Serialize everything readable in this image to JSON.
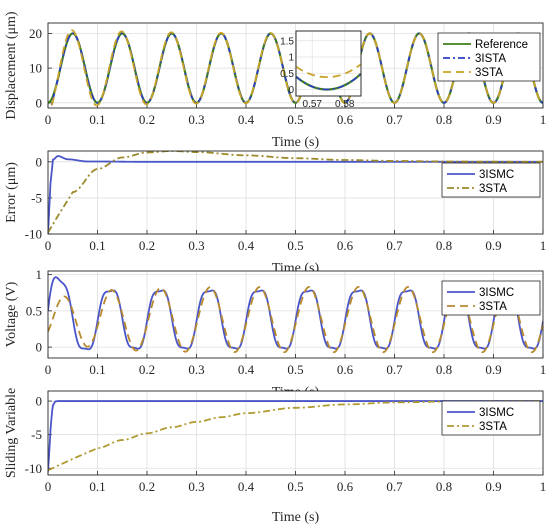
{
  "chart_data": [
    {
      "type": "line",
      "xlabel": "Time (s)",
      "ylabel": "Displacement (μm)",
      "xlim": [
        0,
        1
      ],
      "ylim": [
        -1.5,
        23
      ],
      "xticks": [
        "0",
        "0.1",
        "0.2",
        "0.3",
        "0.4",
        "0.5",
        "0.6",
        "0.7",
        "0.8",
        "0.9",
        "1"
      ],
      "yticks": [
        "0",
        "10",
        "20"
      ],
      "grid": true,
      "legend_position": "top-right",
      "signal": {
        "amplitude": 10,
        "offset": 10,
        "frequency_hz": 10
      },
      "series": [
        {
          "name": "Reference",
          "color": "#3f7f19",
          "style": "solid",
          "values_desc": "y = 10 - 10*cos(2*pi*10*t)"
        },
        {
          "name": "3ISTA",
          "color": "#2a3fc2",
          "style": "dashdot",
          "values_desc": "tracks reference closely"
        },
        {
          "name": "3STA",
          "color": "#c9a227",
          "style": "dashed",
          "values_desc": "tracks reference with error in first 0.4 s"
        }
      ],
      "inset": {
        "xlim": [
          0.565,
          0.585
        ],
        "ylim": [
          -0.2,
          1.8
        ],
        "xticks": [
          "0.57",
          "0.58"
        ],
        "yticks": [
          "0",
          "0.5",
          "1",
          "1.5"
        ],
        "min_x": 0.5745
      }
    },
    {
      "type": "line",
      "xlabel": "Time (s)",
      "ylabel": "Error (μm)",
      "xlim": [
        0,
        1
      ],
      "ylim": [
        -10,
        1.5
      ],
      "xticks": [
        "0",
        "0.1",
        "0.2",
        "0.3",
        "0.4",
        "0.5",
        "0.6",
        "0.7",
        "0.8",
        "0.9",
        "1"
      ],
      "yticks": [
        "-10",
        "-5",
        "0"
      ],
      "grid": true,
      "legend_position": "right",
      "series": [
        {
          "name": "3ISMC",
          "color": "#4a55c8",
          "style": "solid",
          "x": [
            0,
            0.005,
            0.01,
            0.02,
            0.04,
            0.08,
            0.2,
            1
          ],
          "y": [
            -10,
            -3,
            0.3,
            0.8,
            0.35,
            0.05,
            0,
            0
          ]
        },
        {
          "name": "3STA",
          "color": "#9c8a2a",
          "style": "dashdot",
          "x": [
            0,
            0.02,
            0.05,
            0.1,
            0.15,
            0.2,
            0.25,
            0.3,
            0.4,
            0.5,
            0.6,
            0.7,
            0.8,
            0.9,
            1
          ],
          "y": [
            -9.8,
            -7.5,
            -4.2,
            -1.0,
            0.6,
            1.3,
            1.5,
            1.35,
            0.9,
            0.5,
            0.25,
            0.12,
            0.05,
            0.02,
            0
          ]
        }
      ]
    },
    {
      "type": "line",
      "xlabel": "Time (s)",
      "ylabel": "Voltage (V)",
      "xlim": [
        0,
        1
      ],
      "ylim": [
        -0.15,
        1.05
      ],
      "xticks": [
        "0",
        "0.1",
        "0.2",
        "0.3",
        "0.4",
        "0.5",
        "0.6",
        "0.7",
        "0.8",
        "0.9",
        "1"
      ],
      "yticks": [
        "0",
        "0.5",
        "1"
      ],
      "grid": true,
      "legend_position": "top-right",
      "signal": {
        "amplitude": 0.45,
        "offset": 0.38,
        "frequency_hz": 10
      },
      "series": [
        {
          "name": "3ISMC",
          "color": "#4a55c8",
          "style": "solid",
          "values_desc": "periodic, first peak ≈ 0.95"
        },
        {
          "name": "3STA",
          "color": "#b88a2e",
          "style": "dashed",
          "values_desc": "periodic, first peak ≈ 0.68"
        }
      ]
    },
    {
      "type": "line",
      "xlabel": "Time (s)",
      "ylabel": "Sliding Variable",
      "xlim": [
        0,
        1
      ],
      "ylim": [
        -11,
        1.5
      ],
      "xticks": [
        "0",
        "0.1",
        "0.2",
        "0.3",
        "0.4",
        "0.5",
        "0.6",
        "0.7",
        "0.8",
        "0.9",
        "1"
      ],
      "yticks": [
        "-10",
        "-5",
        "0"
      ],
      "grid": true,
      "legend_position": "top-right",
      "series": [
        {
          "name": "3ISMC",
          "color": "#4a55c8",
          "style": "solid",
          "x": [
            0,
            0.003,
            0.006,
            0.01,
            0.015,
            0.02,
            1
          ],
          "y": [
            -10.5,
            -7,
            -3,
            -0.6,
            -0.05,
            0,
            0
          ]
        },
        {
          "name": "3STA",
          "color": "#b09a32",
          "style": "dashdot",
          "x": [
            0,
            0.05,
            0.1,
            0.15,
            0.2,
            0.25,
            0.3,
            0.35,
            0.4,
            0.5,
            0.6,
            0.7,
            0.8,
            0.9,
            1
          ],
          "y": [
            -10.3,
            -8.6,
            -7.0,
            -5.8,
            -4.8,
            -3.9,
            -3.1,
            -2.4,
            -1.8,
            -1.0,
            -0.5,
            -0.2,
            -0.08,
            -0.03,
            0
          ]
        }
      ]
    }
  ]
}
